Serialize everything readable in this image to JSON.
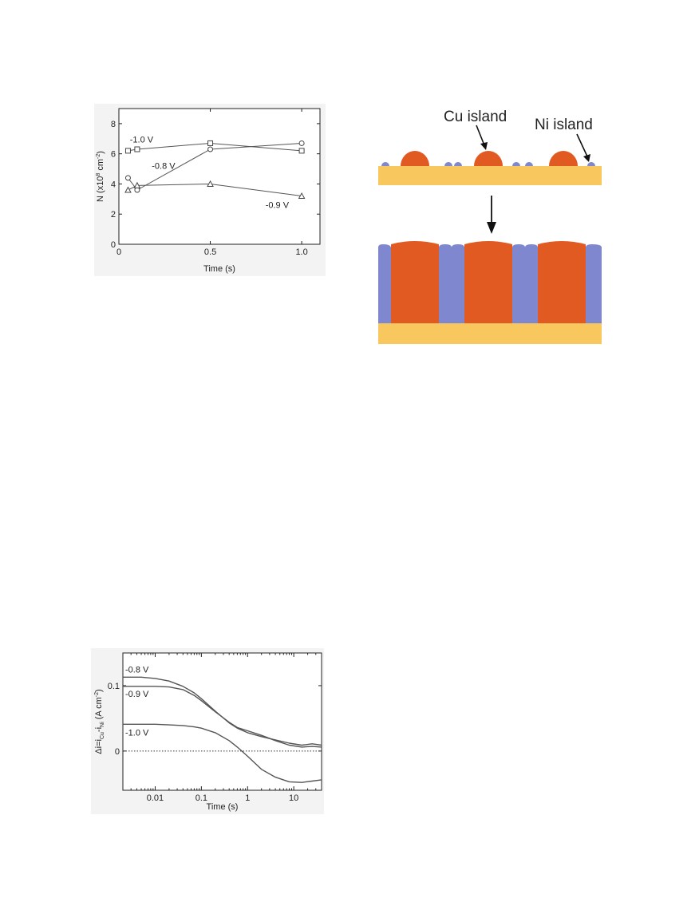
{
  "chart_data": [
    {
      "type": "line",
      "xlabel": "Time (s)",
      "ylabel_parts": {
        "base": "N (x10",
        "exp": "8",
        "mid": " cm",
        "exp2": "-2",
        "end": ")"
      },
      "xlim": [
        0,
        1.1
      ],
      "ylim": [
        0,
        9
      ],
      "xticks": [
        0,
        0.5,
        1.0
      ],
      "xtick_labels": [
        "0",
        "0.5",
        "1.0"
      ],
      "yticks": [
        0,
        2,
        4,
        6,
        8
      ],
      "ytick_labels": [
        "0",
        "2",
        "4",
        "6",
        "8"
      ],
      "grid": false,
      "series": [
        {
          "name": "-1.0 V",
          "marker": "square",
          "x": [
            0.05,
            0.1,
            0.5,
            1.0
          ],
          "y": [
            6.2,
            6.3,
            6.7,
            6.2
          ]
        },
        {
          "name": "-0.8 V",
          "marker": "circle",
          "x": [
            0.05,
            0.1,
            0.5,
            1.0
          ],
          "y": [
            4.4,
            3.6,
            6.3,
            6.7
          ]
        },
        {
          "name": "-0.9 V",
          "marker": "triangle",
          "x": [
            0.05,
            0.1,
            0.5,
            1.0
          ],
          "y": [
            3.6,
            3.9,
            4.0,
            3.2
          ]
        }
      ]
    },
    {
      "type": "line",
      "xlabel": "Time (s)",
      "ylabel_parts": {
        "base": "Δi=i",
        "sub1": "Cu",
        "mid": "-i",
        "sub2": "Ni",
        "unit": " (A cm",
        "exp": "-2",
        "end": ")"
      },
      "xscale": "log",
      "xlim": [
        0.002,
        40
      ],
      "ylim": [
        -0.06,
        0.15
      ],
      "xticks": [
        0.01,
        0.1,
        1,
        10
      ],
      "xtick_labels": [
        "0.01",
        "0.1",
        "1",
        "10"
      ],
      "yticks": [
        0,
        0.1
      ],
      "ytick_labels": [
        "0",
        "0.1"
      ],
      "reference_line_y": 0,
      "grid": false,
      "series": [
        {
          "name": "-0.8 V",
          "x": [
            0.002,
            0.005,
            0.01,
            0.02,
            0.04,
            0.07,
            0.1,
            0.2,
            0.4,
            0.6,
            1,
            2,
            4,
            8,
            15,
            25,
            40
          ],
          "y": [
            0.113,
            0.113,
            0.111,
            0.107,
            0.099,
            0.089,
            0.08,
            0.061,
            0.043,
            0.035,
            0.028,
            0.022,
            0.017,
            0.012,
            0.009,
            0.011,
            0.009
          ]
        },
        {
          "name": "-0.9 V",
          "x": [
            0.002,
            0.005,
            0.01,
            0.02,
            0.04,
            0.07,
            0.1,
            0.2,
            0.4,
            0.6,
            1,
            2,
            4,
            8,
            15,
            25,
            40
          ],
          "y": [
            0.099,
            0.099,
            0.099,
            0.098,
            0.094,
            0.085,
            0.077,
            0.06,
            0.044,
            0.036,
            0.031,
            0.024,
            0.016,
            0.009,
            0.006,
            0.007,
            0.006
          ]
        },
        {
          "name": "-1.0 V",
          "x": [
            0.002,
            0.005,
            0.01,
            0.02,
            0.04,
            0.07,
            0.1,
            0.2,
            0.4,
            0.6,
            1,
            2,
            4,
            8,
            15,
            25,
            40
          ],
          "y": [
            0.041,
            0.041,
            0.041,
            0.04,
            0.039,
            0.037,
            0.035,
            0.028,
            0.016,
            0.006,
            -0.008,
            -0.028,
            -0.04,
            -0.047,
            -0.048,
            -0.046,
            -0.044
          ]
        }
      ]
    }
  ],
  "diagram": {
    "label_cu": "Cu island",
    "label_ni": "Ni island",
    "colors": {
      "substrate": "#F8C85E",
      "cu": "#E05A22",
      "ni": "#7F87CF",
      "arrow": "#111111"
    }
  }
}
